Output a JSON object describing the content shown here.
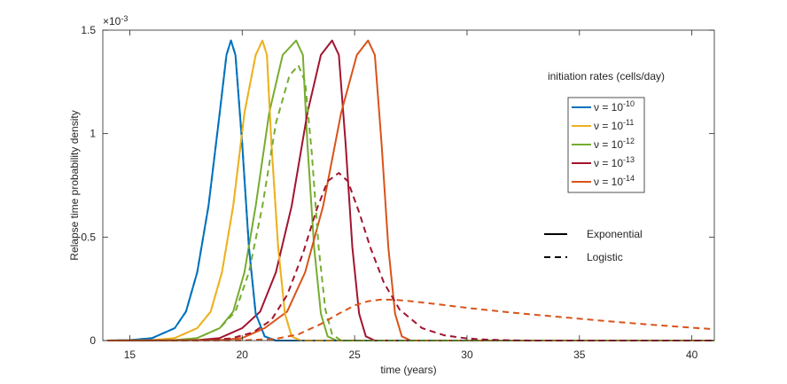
{
  "chart_data": {
    "type": "line",
    "xlabel": "time (years)",
    "ylabel": "Relapse time probability density",
    "xlim": [
      13.8,
      41
    ],
    "ylim": [
      0,
      0.0015
    ],
    "xticks": [
      15,
      20,
      25,
      30,
      35,
      40
    ],
    "xtick_labels": [
      "15",
      "20",
      "25",
      "30",
      "35",
      "40"
    ],
    "yticks": [
      0,
      0.0005,
      0.001,
      0.0015
    ],
    "ytick_labels": [
      "0",
      "0.5",
      "1",
      "1.5"
    ],
    "y_exponent_label": "×10-3",
    "legend_title": "initiation rates (cells/day)",
    "legend_entries": [
      {
        "label": "ν = 10-10",
        "color": "#0072BD"
      },
      {
        "label": "ν = 10-11",
        "color": "#EDB120"
      },
      {
        "label": "ν = 10-12",
        "color": "#77AC30"
      },
      {
        "label": "ν = 10-13",
        "color": "#A2142F"
      },
      {
        "label": "ν = 10-14",
        "color": "#D95319"
      }
    ],
    "style_legend": [
      {
        "label": "Exponential",
        "line": "solid"
      },
      {
        "label": "Logistic",
        "line": "dashed"
      }
    ],
    "series": [
      {
        "name": "Exponential ν=1e-10",
        "color": "#0072BD",
        "line": "solid",
        "x": [
          14,
          15,
          16,
          17,
          17.5,
          18,
          18.5,
          19,
          19.3,
          19.5,
          19.7,
          20,
          20.3,
          20.6,
          21,
          21.5,
          22,
          41
        ],
        "y": [
          0,
          2e-06,
          1.2e-05,
          6e-05,
          0.00014,
          0.00033,
          0.00065,
          0.0011,
          0.00138,
          0.00145,
          0.00138,
          0.00095,
          0.00045,
          0.00013,
          2e-05,
          0,
          0,
          0
        ]
      },
      {
        "name": "Exponential ν=1e-11",
        "color": "#EDB120",
        "line": "solid",
        "x": [
          14,
          16,
          17,
          18,
          18.6,
          19.1,
          19.6,
          20.1,
          20.6,
          20.9,
          21.1,
          21.3,
          21.6,
          21.9,
          22.2,
          22.6,
          23.1,
          41
        ],
        "y": [
          0,
          2e-06,
          1.2e-05,
          6e-05,
          0.00014,
          0.00033,
          0.00065,
          0.0011,
          0.00138,
          0.00145,
          0.00138,
          0.00095,
          0.00045,
          0.00013,
          2e-05,
          0,
          0,
          0
        ]
      },
      {
        "name": "Exponential ν=1e-12",
        "color": "#77AC30",
        "line": "solid",
        "x": [
          14,
          17,
          18,
          19,
          19.6,
          20.1,
          20.6,
          21.2,
          21.8,
          22.4,
          22.7,
          22.9,
          23.2,
          23.5,
          23.8,
          24.2,
          24.7,
          41
        ],
        "y": [
          0,
          2e-06,
          1.2e-05,
          6e-05,
          0.00014,
          0.00033,
          0.00065,
          0.0011,
          0.00138,
          0.00145,
          0.00138,
          0.00095,
          0.00045,
          0.00013,
          2e-05,
          0,
          0,
          0
        ]
      },
      {
        "name": "Exponential ν=1e-13",
        "color": "#A2142F",
        "line": "solid",
        "x": [
          14,
          18,
          19,
          20,
          20.8,
          21.5,
          22.2,
          22.9,
          23.5,
          24.0,
          24.3,
          24.6,
          24.9,
          25.2,
          25.5,
          25.9,
          26.4,
          41
        ],
        "y": [
          0,
          2e-06,
          1.2e-05,
          6e-05,
          0.00014,
          0.00033,
          0.00065,
          0.0011,
          0.00138,
          0.00145,
          0.00138,
          0.00095,
          0.00045,
          0.00013,
          2e-05,
          0,
          0,
          0
        ]
      },
      {
        "name": "Exponential ν=1e-14",
        "color": "#D95319",
        "line": "solid",
        "x": [
          14,
          19,
          20,
          21,
          22,
          22.8,
          23.6,
          24.4,
          25.1,
          25.6,
          25.9,
          26.2,
          26.5,
          26.8,
          27.1,
          27.5,
          28,
          41
        ],
        "y": [
          0,
          2e-06,
          1.2e-05,
          6e-05,
          0.00014,
          0.00033,
          0.00065,
          0.0011,
          0.00138,
          0.00145,
          0.00138,
          0.00095,
          0.00045,
          0.00013,
          2e-05,
          0,
          0,
          0
        ]
      },
      {
        "name": "Logistic ν=1e-10",
        "color": "#0072BD",
        "line": "dashed",
        "x": [
          14,
          15,
          16,
          17,
          17.5,
          18,
          18.5,
          19,
          19.3,
          19.5,
          19.7,
          20,
          20.3,
          20.6,
          21,
          21.5,
          22,
          41
        ],
        "y": [
          0,
          2e-06,
          1.2e-05,
          6e-05,
          0.00014,
          0.00033,
          0.00065,
          0.0011,
          0.00138,
          0.00145,
          0.00138,
          0.00095,
          0.00045,
          0.00013,
          2e-05,
          0,
          0,
          0
        ]
      },
      {
        "name": "Logistic ν=1e-11",
        "color": "#EDB120",
        "line": "dashed",
        "x": [
          14,
          16,
          17,
          18,
          18.6,
          19.1,
          19.6,
          20.1,
          20.6,
          20.9,
          21.1,
          21.3,
          21.6,
          21.9,
          22.2,
          22.6,
          23.1,
          41
        ],
        "y": [
          0,
          2e-06,
          1.2e-05,
          6e-05,
          0.00014,
          0.00033,
          0.00065,
          0.0011,
          0.00138,
          0.00145,
          0.00138,
          0.00095,
          0.00045,
          0.00013,
          2e-05,
          0,
          0,
          0
        ]
      },
      {
        "name": "Logistic ν=1e-12",
        "color": "#77AC30",
        "line": "dashed",
        "x": [
          14,
          17,
          18,
          19,
          19.7,
          20.3,
          20.9,
          21.5,
          22.1,
          22.5,
          22.8,
          23.1,
          23.4,
          23.7,
          24.0,
          24.4,
          24.9,
          41
        ],
        "y": [
          0,
          2e-06,
          1.2e-05,
          6e-05,
          0.00014,
          0.00033,
          0.00065,
          0.00105,
          0.00128,
          0.00133,
          0.00125,
          0.0009,
          0.00045,
          0.00015,
          3e-05,
          0,
          0,
          0
        ]
      },
      {
        "name": "Logistic ν=1e-13",
        "color": "#A2142F",
        "line": "dashed",
        "x": [
          14,
          18,
          19.5,
          20.5,
          21.3,
          22,
          22.7,
          23.3,
          23.8,
          24.3,
          24.7,
          25.2,
          25.7,
          26.3,
          27,
          28,
          29,
          30,
          31,
          32,
          33,
          41
        ],
        "y": [
          0,
          1e-06,
          1e-05,
          4e-05,
          0.0001,
          0.00022,
          0.00042,
          0.00063,
          0.00077,
          0.00081,
          0.00077,
          0.00062,
          0.00045,
          0.00028,
          0.00015,
          6e-05,
          2.5e-05,
          1e-05,
          4e-06,
          1e-06,
          0,
          0
        ]
      },
      {
        "name": "Logistic ν=1e-14",
        "color": "#D95319",
        "line": "dashed",
        "x": [
          14,
          20,
          21.5,
          22.5,
          23.5,
          24.3,
          25,
          25.6,
          26.2,
          26.8,
          27.5,
          28.5,
          30,
          32,
          34,
          36,
          38,
          40,
          41
        ],
        "y": [
          0,
          1e-06,
          8e-06,
          3e-05,
          8e-05,
          0.00013,
          0.00017,
          0.00019,
          0.000198,
          0.000197,
          0.00019,
          0.000178,
          0.000158,
          0.000135,
          0.000115,
          9.6e-05,
          7.8e-05,
          6.2e-05,
          5.5e-05
        ]
      }
    ]
  }
}
